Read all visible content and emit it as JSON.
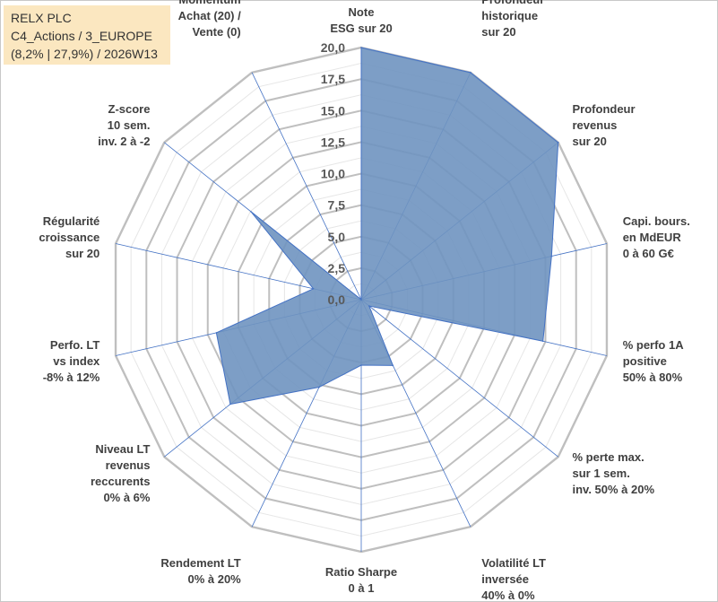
{
  "header": {
    "line1": "RELX PLC",
    "line2": "C4_Actions / 3_EUROPE",
    "line3": "(8,2% | 27,9%) / 2026W13"
  },
  "chart_data": {
    "type": "radar",
    "title": "RELX PLC",
    "rmin": 0,
    "rmax": 20,
    "ticks": [
      "0,0",
      "2,5",
      "5,0",
      "7,5",
      "10,0",
      "12,5",
      "15,0",
      "17,5",
      "20,0"
    ],
    "axes": [
      {
        "label": [
          "Note",
          "ESG sur 20"
        ],
        "value": 20
      },
      {
        "label": [
          "Profondeur",
          "historique",
          "sur 20"
        ],
        "value": 20
      },
      {
        "label": [
          "Profondeur",
          "revenus",
          "sur 20"
        ],
        "value": 20
      },
      {
        "label": [
          "Capi. bours.",
          "en MdEUR",
          "0 à 60 G€"
        ],
        "value": 15.5
      },
      {
        "label": [
          "% perfo 1A",
          "positive",
          "50% à 80%"
        ],
        "value": 14.8
      },
      {
        "label": [
          "% perte max.",
          "sur 1 sem.",
          "inv. 50% à 20%"
        ],
        "value": 0.8
      },
      {
        "label": [
          "Volatilité LT",
          "inversée",
          "40% à 0%"
        ],
        "value": 5.8
      },
      {
        "label": [
          "Ratio Sharpe",
          "0 à 1"
        ],
        "value": 5.2
      },
      {
        "label": [
          "Rendement LT",
          "0% à 20%"
        ],
        "value": 7.7
      },
      {
        "label": [
          "Niveau LT",
          "revenus",
          "reccurents",
          "0% à 6%"
        ],
        "value": 13.3
      },
      {
        "label": [
          "Perfo. LT",
          "vs index",
          "-8% à 12%"
        ],
        "value": 11.8
      },
      {
        "label": [
          "Régularité",
          "croissance",
          "sur 20"
        ],
        "value": 3.9
      },
      {
        "label": [
          "Z-score",
          "10 sem.",
          "inv. 2 à -2"
        ],
        "value": 11.2
      },
      {
        "label": [
          "Momentum",
          "Achat (20) /",
          "Vente (0)"
        ],
        "value": 0
      }
    ],
    "colors": {
      "fill": "#6f93c0",
      "stroke": "#4472c4",
      "grid": "#c8c8c8",
      "spoke": "#4472c4"
    }
  }
}
